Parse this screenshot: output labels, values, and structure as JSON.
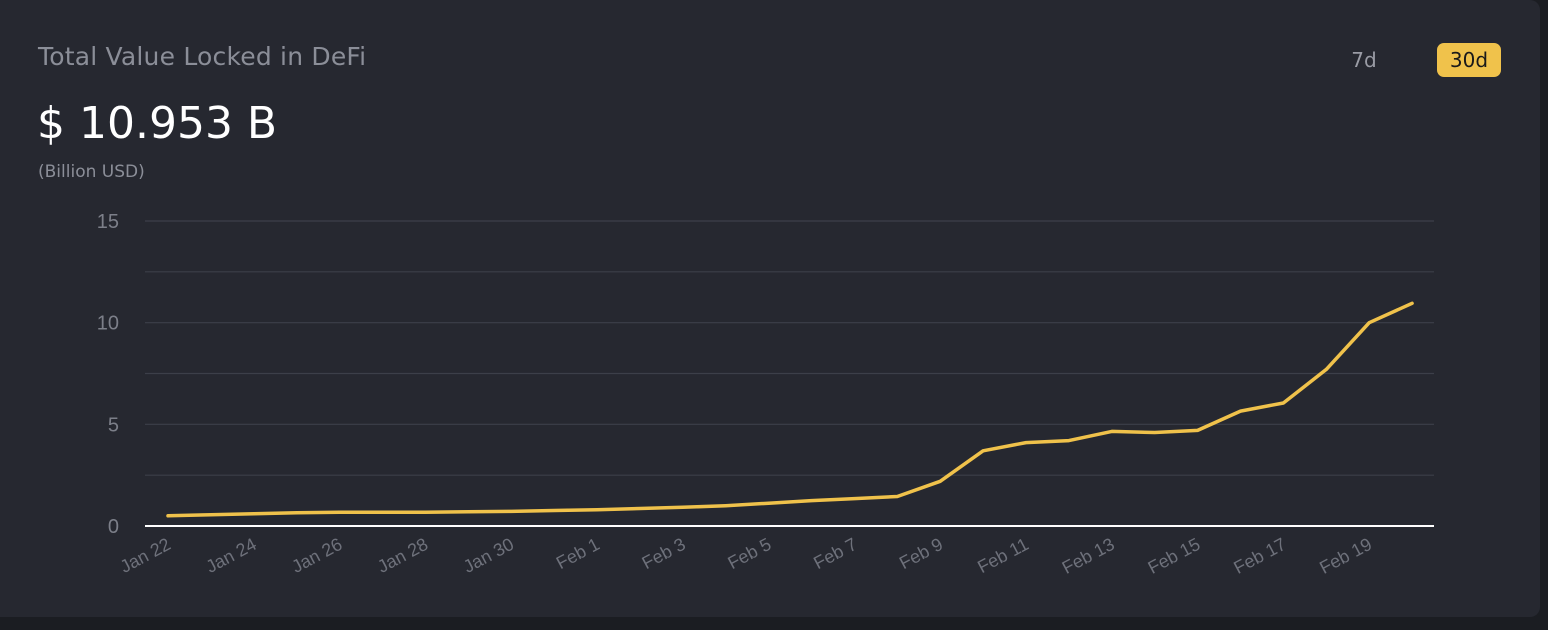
{
  "header": {
    "title": "Total Value Locked in DeFi",
    "value": "$ 10.953 B",
    "unit": "(Billion USD)"
  },
  "range_buttons": [
    {
      "label": "7d",
      "active": false
    },
    {
      "label": "30d",
      "active": true
    }
  ],
  "colors": {
    "line": "#f0c24b",
    "accent": "#f0c24b",
    "grid": "#3c3f49",
    "baseline": "#ffffff"
  },
  "chart_data": {
    "type": "line",
    "ylim": [
      0,
      15
    ],
    "yticks": [
      0,
      5,
      10,
      15
    ],
    "grid": true,
    "xtick_labels": [
      "Jan 22",
      "Jan 24",
      "Jan 26",
      "Jan 28",
      "Jan 30",
      "Feb 1",
      "Feb 3",
      "Feb 5",
      "Feb 7",
      "Feb 9",
      "Feb 11",
      "Feb 13",
      "Feb 15",
      "Feb 17",
      "Feb 19"
    ],
    "x": [
      "Jan 22",
      "Jan 23",
      "Jan 24",
      "Jan 25",
      "Jan 26",
      "Jan 27",
      "Jan 28",
      "Jan 29",
      "Jan 30",
      "Jan 31",
      "Feb 1",
      "Feb 2",
      "Feb 3",
      "Feb 4",
      "Feb 5",
      "Feb 6",
      "Feb 7",
      "Feb 8",
      "Feb 9",
      "Feb 10",
      "Feb 11",
      "Feb 12",
      "Feb 13",
      "Feb 14",
      "Feb 15",
      "Feb 16",
      "Feb 17",
      "Feb 18",
      "Feb 19",
      "Feb 20"
    ],
    "series": [
      {
        "values": [
          0.5,
          0.55,
          0.6,
          0.65,
          0.68,
          0.68,
          0.68,
          0.7,
          0.72,
          0.76,
          0.8,
          0.86,
          0.92,
          1.0,
          1.12,
          1.25,
          1.35,
          1.45,
          2.2,
          3.7,
          4.1,
          4.2,
          4.65,
          4.6,
          4.7,
          5.65,
          6.05,
          7.7,
          10.0,
          10.953
        ]
      }
    ]
  }
}
